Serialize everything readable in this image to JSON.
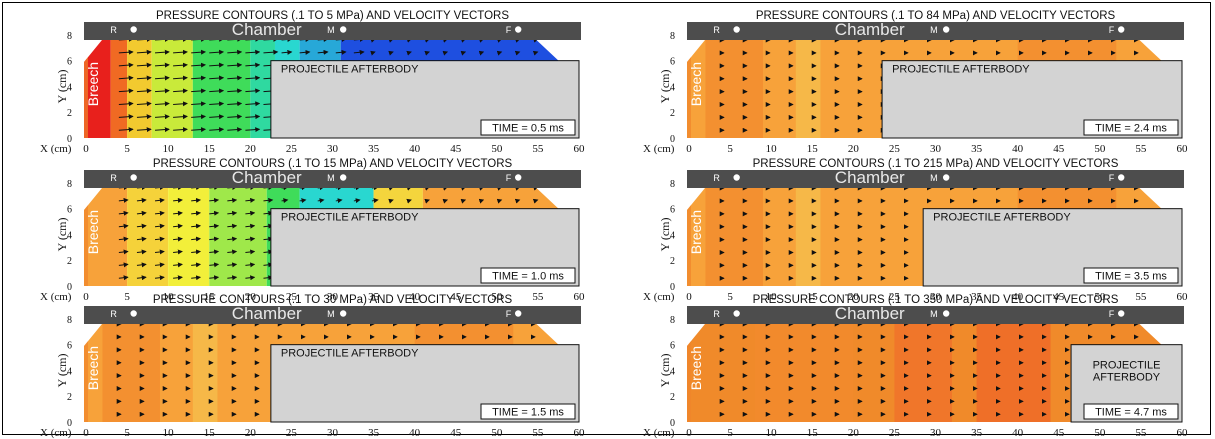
{
  "labels": {
    "chamber": "Chamber",
    "breech": "Breech",
    "marker_r": "R",
    "marker_m": "M",
    "marker_f": "F",
    "ylabel": "Y (cm)",
    "xlabel": "X (cm)",
    "afterbody": "PROJECTILE AFTERBODY",
    "afterbody_line1": "PROJECTILE",
    "afterbody_line2": "AFTERBODY"
  },
  "x_ticks": [
    "0",
    "5",
    "10",
    "15",
    "20",
    "25",
    "30",
    "35",
    "40",
    "45",
    "50",
    "55",
    "60"
  ],
  "y_ticks": [
    "0",
    "2",
    "4",
    "6",
    "8"
  ],
  "panels": [
    {
      "title": "PRESSURE CONTOURS (.1 TO 5 MPa) AND VELOCITY VECTORS",
      "time": "TIME = 0.5 ms",
      "afterbody_x": 22.5,
      "scheme": "early"
    },
    {
      "title": "PRESSURE CONTOURS (.1 TO 15 MPa) AND VELOCITY VECTORS",
      "time": "TIME = 1.0 ms",
      "afterbody_x": 22.5,
      "scheme": "yellowgreen"
    },
    {
      "title": "PRESSURE CONTOURS (.1 TO 30 MPa) AND VELOCITY VECTORS",
      "time": "TIME = 1.5 ms",
      "afterbody_x": 22.5,
      "scheme": "orange"
    },
    {
      "title": "PRESSURE CONTOURS (.1 TO 84 MPa) AND VELOCITY VECTORS",
      "time": "TIME = 2.4 ms",
      "afterbody_x": 23.5,
      "scheme": "orange"
    },
    {
      "title": "PRESSURE CONTOURS (.1 TO 215 MPa) AND VELOCITY VECTORS",
      "time": "TIME = 3.5 ms",
      "afterbody_x": 28.5,
      "scheme": "orange"
    },
    {
      "title": "PRESSURE CONTOURS (.1 TO 350 MPa) AND VELOCITY VECTORS",
      "time": "TIME = 4.7 ms",
      "afterbody_x": 46.5,
      "scheme": "deeporange"
    }
  ],
  "colors": {
    "wall": "#4d4d4d",
    "afterbody": "#d3d3d3",
    "red": "#e8201c",
    "orange": "#f7a23a",
    "deep_orange": "#f08a2a",
    "yellow": "#f2ef3a",
    "green": "#3fdc5a",
    "cyan": "#29d7d0",
    "blue": "#1e4fe0"
  }
}
